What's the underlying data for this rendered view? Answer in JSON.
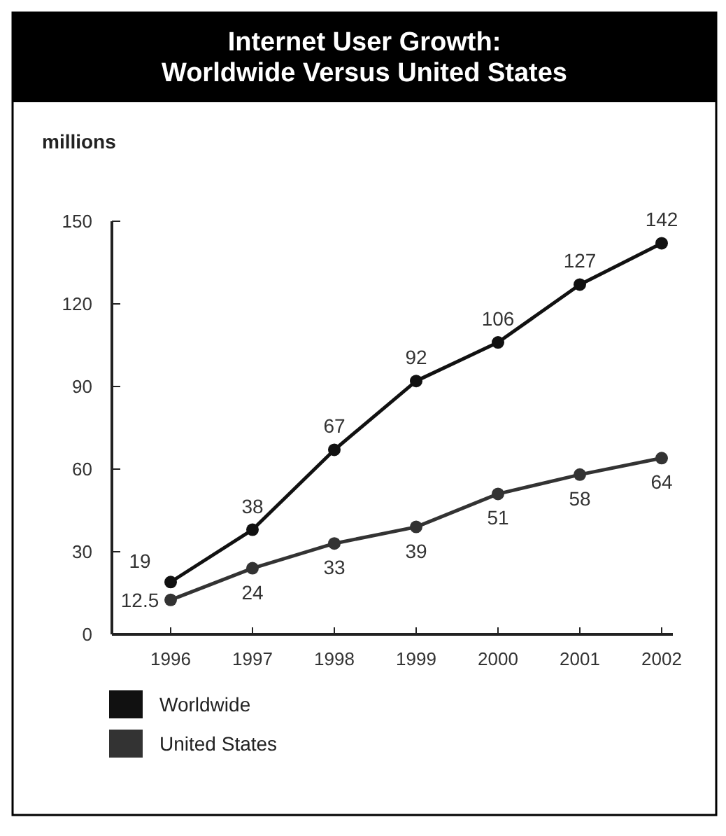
{
  "chart_data": {
    "type": "line",
    "title": "Internet User Growth:\nWorldwide Versus United States",
    "ylabel": "millions",
    "categories": [
      "1996",
      "1997",
      "1998",
      "1999",
      "2000",
      "2001",
      "2002"
    ],
    "series": [
      {
        "name": "Worldwide",
        "color": "#111111",
        "values": [
          19,
          38,
          67,
          92,
          106,
          127,
          142
        ]
      },
      {
        "name": "United States",
        "color": "#333333",
        "values": [
          12.5,
          24,
          33,
          39,
          51,
          58,
          64
        ]
      }
    ],
    "ylim": [
      0,
      150
    ],
    "yticks": [
      0,
      30,
      60,
      90,
      120,
      150
    ],
    "grid": false,
    "legend": "bottom left",
    "marker": "circle",
    "line_style": "solid",
    "data_labels": true
  }
}
